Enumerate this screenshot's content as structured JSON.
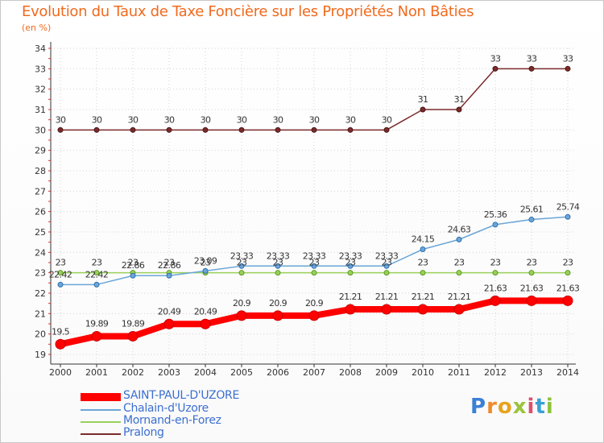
{
  "title": "Evolution du Taux de Taxe Foncière sur les Propriétés Non Bâties",
  "unit_label": "(en %)",
  "brand": "Proxiti",
  "chart_data": {
    "type": "line",
    "title": "Evolution du Taux de Taxe Foncière sur les Propriétés Non Bâties",
    "ylabel": "(en %)",
    "xlabel": "",
    "categories": [
      "2000",
      "2001",
      "2002",
      "2003",
      "2004",
      "2005",
      "2006",
      "2007",
      "2008",
      "2009",
      "2010",
      "2011",
      "2012",
      "2013",
      "2014"
    ],
    "ylim": [
      19,
      34
    ],
    "yticks": [
      19,
      20,
      21,
      22,
      23,
      24,
      25,
      26,
      27,
      28,
      29,
      30,
      31,
      32,
      33,
      34
    ],
    "legend_position": "bottom",
    "series": [
      {
        "name": "SAINT-PAUL-D'UZORE",
        "color": "#ff0000",
        "values": [
          19.5,
          19.89,
          19.89,
          20.49,
          20.49,
          20.9,
          20.9,
          20.9,
          21.21,
          21.21,
          21.21,
          21.21,
          21.63,
          21.63,
          21.63
        ],
        "labels": [
          "19.5",
          "19.89",
          "19.89",
          "20.49",
          "20.49",
          "20.9",
          "20.9",
          "20.9",
          "21.21",
          "21.21",
          "21.21",
          "21.21",
          "21.63",
          "21.63",
          "21.63"
        ]
      },
      {
        "name": "Chalain-d'Uzore",
        "color": "#6aa6d8",
        "values": [
          22.42,
          22.42,
          22.86,
          22.86,
          23.09,
          23.33,
          23.33,
          23.33,
          23.33,
          23.33,
          24.15,
          24.63,
          25.36,
          25.61,
          25.74
        ],
        "labels": [
          "22.42",
          "22.42",
          "22.86",
          "22.86",
          "23.09",
          "23.33",
          "23.33",
          "23.33",
          "23.33",
          "23.33",
          "24.15",
          "24.63",
          "25.36",
          "25.61",
          "25.74"
        ]
      },
      {
        "name": "Mornand-en-Forez",
        "color": "#9ad05a",
        "values": [
          23,
          23,
          23,
          23,
          23,
          23,
          23,
          23,
          23,
          23,
          23,
          23,
          23,
          23,
          23
        ],
        "labels": [
          "23",
          "23",
          "23",
          "23",
          "23",
          "23",
          "23",
          "23",
          "23",
          "23",
          "23",
          "23",
          "23",
          "23",
          "23"
        ]
      },
      {
        "name": "Pralong",
        "color": "#7b2b2b",
        "values": [
          30,
          30,
          30,
          30,
          30,
          30,
          30,
          30,
          30,
          30,
          31,
          31,
          33,
          33,
          33
        ],
        "labels": [
          "30",
          "30",
          "30",
          "30",
          "30",
          "30",
          "30",
          "30",
          "30",
          "30",
          "31",
          "31",
          "33",
          "33",
          "33"
        ]
      }
    ]
  }
}
